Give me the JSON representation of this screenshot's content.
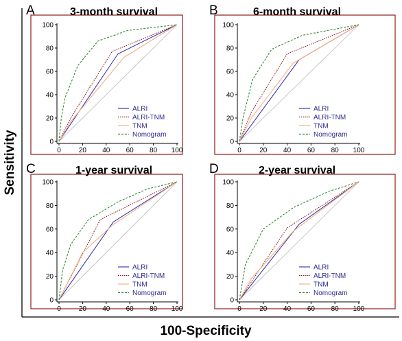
{
  "figure": {
    "ylabel": "Sensitivity",
    "xlabel": "100-Specificity"
  },
  "colors": {
    "frame": "#8b1a1a",
    "diagonal": "#c8c8c8",
    "axis": "#000000"
  },
  "chart_data": [
    {
      "type": "line",
      "panel": "A",
      "title": "3-month survival",
      "xlim": [
        0,
        100
      ],
      "ylim": [
        0,
        100
      ],
      "xticks": [
        0,
        20,
        40,
        60,
        80,
        100
      ],
      "yticks": [
        0,
        20,
        40,
        60,
        80,
        100
      ],
      "legend_position": "bottom-right",
      "series": [
        {
          "name": "ALRI",
          "color": "#3b3bb0",
          "dash": "solid",
          "points": [
            [
              0,
              0
            ],
            [
              50,
              75
            ],
            [
              100,
              100
            ]
          ]
        },
        {
          "name": "ALRI-TNM",
          "color": "#8b1a1a",
          "dash": "dot",
          "points": [
            [
              0,
              0
            ],
            [
              10,
              20
            ],
            [
              45,
              77
            ],
            [
              100,
              100
            ]
          ]
        },
        {
          "name": "TNM",
          "color": "#f4b183",
          "dash": "solid",
          "points": [
            [
              0,
              0
            ],
            [
              10,
              17
            ],
            [
              55,
              72
            ],
            [
              100,
              100
            ]
          ]
        },
        {
          "name": "Nomogram",
          "color": "#2e8b2e",
          "dash": "dash",
          "points": [
            [
              0,
              0
            ],
            [
              2,
              20
            ],
            [
              5,
              37
            ],
            [
              16,
              65
            ],
            [
              33,
              86
            ],
            [
              58,
              95
            ],
            [
              100,
              100
            ]
          ]
        }
      ]
    },
    {
      "type": "line",
      "panel": "B",
      "title": "6-month survival",
      "xlim": [
        0,
        100
      ],
      "ylim": [
        0,
        100
      ],
      "xticks": [
        0,
        20,
        40,
        60,
        80,
        100
      ],
      "yticks": [
        0,
        20,
        40,
        60,
        80,
        100
      ],
      "legend_position": "bottom-right",
      "series": [
        {
          "name": "ALRI",
          "color": "#3b3bb0",
          "dash": "solid",
          "points": [
            [
              0,
              0
            ],
            [
              50,
              70
            ],
            [
              100,
              100
            ]
          ]
        },
        {
          "name": "ALRI-TNM",
          "color": "#8b1a1a",
          "dash": "dot",
          "points": [
            [
              0,
              0
            ],
            [
              10,
              25
            ],
            [
              40,
              75
            ],
            [
              100,
              100
            ]
          ]
        },
        {
          "name": "TNM",
          "color": "#f4b183",
          "dash": "solid",
          "points": [
            [
              0,
              0
            ],
            [
              10,
              20
            ],
            [
              45,
              67
            ],
            [
              100,
              100
            ]
          ]
        },
        {
          "name": "Nomogram",
          "color": "#2e8b2e",
          "dash": "dash",
          "points": [
            [
              0,
              0
            ],
            [
              3,
              20
            ],
            [
              11,
              53
            ],
            [
              27,
              79
            ],
            [
              53,
              91
            ],
            [
              100,
              100
            ]
          ]
        }
      ]
    },
    {
      "type": "line",
      "panel": "C",
      "title": "1-year survival",
      "xlim": [
        0,
        100
      ],
      "ylim": [
        0,
        100
      ],
      "xticks": [
        0,
        20,
        40,
        60,
        80,
        100
      ],
      "yticks": [
        0,
        20,
        40,
        60,
        80,
        100
      ],
      "legend_position": "bottom-right",
      "series": [
        {
          "name": "ALRI",
          "color": "#3b3bb0",
          "dash": "solid",
          "points": [
            [
              0,
              0
            ],
            [
              46,
              66
            ],
            [
              100,
              100
            ]
          ]
        },
        {
          "name": "ALRI-TNM",
          "color": "#8b1a1a",
          "dash": "dot",
          "points": [
            [
              0,
              0
            ],
            [
              35,
              68
            ],
            [
              100,
              100
            ]
          ]
        },
        {
          "name": "TNM",
          "color": "#f4b183",
          "dash": "solid",
          "points": [
            [
              0,
              0
            ],
            [
              20,
              40
            ],
            [
              45,
              63
            ],
            [
              100,
              100
            ]
          ]
        },
        {
          "name": "Nomogram",
          "color": "#2e8b2e",
          "dash": "dash",
          "points": [
            [
              0,
              0
            ],
            [
              3,
              25
            ],
            [
              10,
              47
            ],
            [
              25,
              68
            ],
            [
              50,
              83
            ],
            [
              75,
              94
            ],
            [
              100,
              100
            ]
          ]
        }
      ]
    },
    {
      "type": "line",
      "panel": "D",
      "title": "2-year survival",
      "xlim": [
        0,
        100
      ],
      "ylim": [
        0,
        100
      ],
      "xticks": [
        0,
        20,
        40,
        60,
        80,
        100
      ],
      "yticks": [
        0,
        20,
        40,
        60,
        80,
        100
      ],
      "legend_position": "bottom-right",
      "series": [
        {
          "name": "ALRI",
          "color": "#3b3bb0",
          "dash": "solid",
          "points": [
            [
              0,
              0
            ],
            [
              50,
              64
            ],
            [
              100,
              100
            ]
          ]
        },
        {
          "name": "ALRI-TNM",
          "color": "#8b1a1a",
          "dash": "dot",
          "points": [
            [
              0,
              0
            ],
            [
              40,
              61
            ],
            [
              100,
              100
            ]
          ]
        },
        {
          "name": "TNM",
          "color": "#f4b183",
          "dash": "solid",
          "points": [
            [
              0,
              0
            ],
            [
              10,
              18
            ],
            [
              45,
              58
            ],
            [
              100,
              100
            ]
          ]
        },
        {
          "name": "Nomogram",
          "color": "#2e8b2e",
          "dash": "dash",
          "points": [
            [
              0,
              0
            ],
            [
              5,
              30
            ],
            [
              20,
              60
            ],
            [
              45,
              78
            ],
            [
              75,
              92
            ],
            [
              100,
              100
            ]
          ]
        }
      ]
    }
  ]
}
